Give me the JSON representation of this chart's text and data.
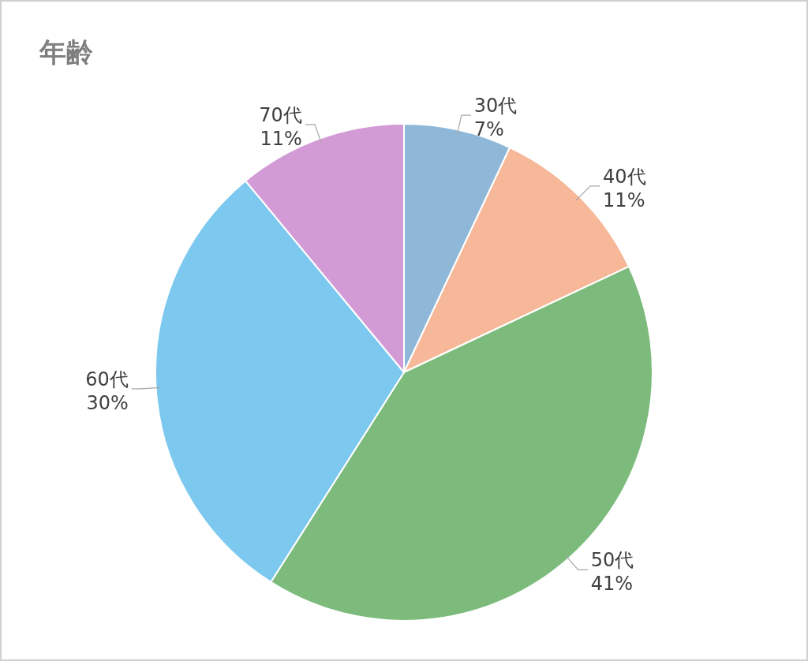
{
  "chart_data": {
    "type": "pie",
    "title": "年齢",
    "categories": [
      "30代",
      "40代",
      "50代",
      "60代",
      "70代"
    ],
    "values": [
      7,
      11,
      41,
      30,
      11
    ],
    "value_labels": [
      "7%",
      "11%",
      "41%",
      "30%",
      "11%"
    ],
    "colors": [
      "#8fb8d8",
      "#f6b898",
      "#7dbb7d",
      "#7cc8ee",
      "#d39bd6"
    ]
  }
}
